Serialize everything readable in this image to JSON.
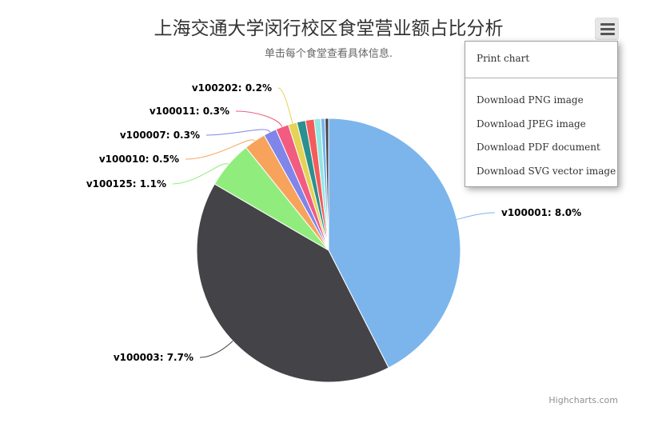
{
  "chart_data": {
    "type": "pie",
    "title": "上海交通大学闵行校区食堂营业额占比分析",
    "subtitle": "单击每个食堂查看具体信息.",
    "unit": "%",
    "slices": [
      {
        "name": "v100001",
        "value": 8.0,
        "color": "#7cb5ec",
        "label": "v100001: 8.0%"
      },
      {
        "name": "v100003",
        "value": 7.7,
        "color": "#434348",
        "label": "v100003: 7.7%"
      },
      {
        "name": "v100125",
        "value": 1.1,
        "color": "#90ed7d",
        "label": "v100125: 1.1%"
      },
      {
        "name": "v100010",
        "value": 0.5,
        "color": "#f7a35c",
        "label": "v100010: 0.5%"
      },
      {
        "name": "v100007",
        "value": 0.3,
        "color": "#8085e9",
        "label": "v100007: 0.3%"
      },
      {
        "name": "v100011",
        "value": 0.3,
        "color": "#f15c80",
        "label": "v100011: 0.3%"
      },
      {
        "name": "v100202",
        "value": 0.2,
        "color": "#e4d354",
        "label": "v100202: 0.2%"
      },
      {
        "name": "",
        "value": 0.2,
        "color": "#2b908f",
        "label": ""
      },
      {
        "name": "",
        "value": 0.2,
        "color": "#f45b5b",
        "label": ""
      },
      {
        "name": "",
        "value": 0.15,
        "color": "#91e8e1",
        "label": ""
      },
      {
        "name": "",
        "value": 0.1,
        "color": "#7cb5ec",
        "label": ""
      },
      {
        "name": "",
        "value": 0.08,
        "color": "#434348",
        "label": ""
      }
    ]
  },
  "menu": {
    "print": "Print chart",
    "png": "Download PNG image",
    "jpeg": "Download JPEG image",
    "pdf": "Download PDF document",
    "svg": "Download SVG vector image"
  },
  "credits": "Highcharts.com"
}
